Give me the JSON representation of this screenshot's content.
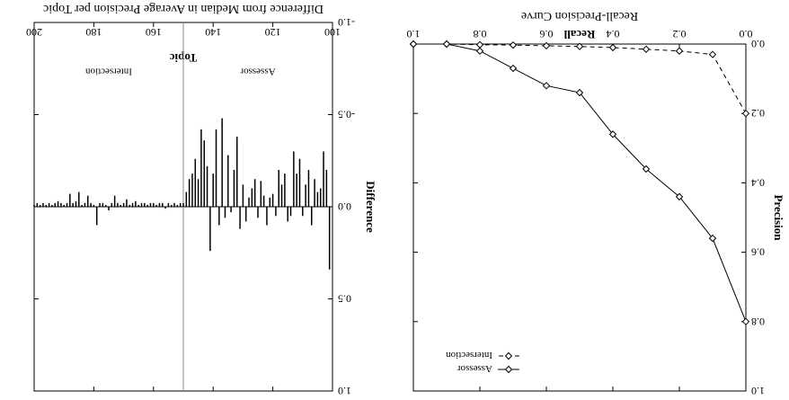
{
  "chart_data": [
    {
      "type": "line",
      "title": "Recall-Precision Curve",
      "xlabel": "Recall",
      "ylabel": "Precision",
      "xlim": [
        0.0,
        1.0
      ],
      "ylim": [
        0.0,
        1.0
      ],
      "xticks": [
        "0.0",
        "0.2",
        "0.4",
        "0.6",
        "0.8",
        "1.0"
      ],
      "yticks": [
        "0.0",
        "0.2",
        "0.4",
        "0.6",
        "0.8",
        "1.0"
      ],
      "grid": false,
      "legend_position": "top-right",
      "series": [
        {
          "name": "Assessor",
          "style": "solid",
          "x": [
            0.0,
            0.1,
            0.2,
            0.3,
            0.4,
            0.5,
            0.6,
            0.7,
            0.8,
            0.9,
            1.0
          ],
          "y": [
            0.8,
            0.56,
            0.44,
            0.36,
            0.26,
            0.14,
            0.12,
            0.07,
            0.02,
            0.0,
            0.0
          ]
        },
        {
          "name": "Intersection",
          "style": "dashed",
          "x": [
            0.0,
            0.1,
            0.2,
            0.3,
            0.4,
            0.5,
            0.6,
            0.7,
            0.8,
            0.9,
            1.0
          ],
          "y": [
            0.2,
            0.03,
            0.02,
            0.015,
            0.01,
            0.007,
            0.005,
            0.003,
            0.002,
            0.0,
            0.0
          ]
        }
      ]
    },
    {
      "type": "bar",
      "title": "Difference from Median in Average Precision per Topic",
      "xlabel": "Topic",
      "ylabel": "Difference",
      "xlim": [
        100,
        200
      ],
      "ylim": [
        -1.0,
        1.0
      ],
      "xticks": [
        "100",
        "120",
        "140",
        "160",
        "180",
        "200"
      ],
      "yticks": [
        "-1.0",
        "-0.5",
        "0.0",
        "0.5",
        "1.0"
      ],
      "region_labels": [
        "Assessor",
        "Intersection"
      ],
      "divider_topic": 150,
      "x": [
        101,
        102,
        103,
        104,
        105,
        106,
        107,
        108,
        109,
        110,
        111,
        112,
        113,
        114,
        115,
        116,
        117,
        118,
        119,
        120,
        121,
        122,
        123,
        124,
        125,
        126,
        127,
        128,
        129,
        130,
        131,
        132,
        133,
        134,
        135,
        136,
        137,
        138,
        139,
        140,
        141,
        142,
        143,
        144,
        145,
        146,
        147,
        148,
        149,
        150,
        151,
        152,
        153,
        154,
        155,
        156,
        157,
        158,
        159,
        160,
        161,
        162,
        163,
        164,
        165,
        166,
        167,
        168,
        169,
        170,
        171,
        172,
        173,
        174,
        175,
        176,
        177,
        178,
        179,
        180,
        181,
        182,
        183,
        184,
        185,
        186,
        187,
        188,
        189,
        190,
        191,
        192,
        193,
        194,
        195,
        196,
        197,
        198,
        199,
        200
      ],
      "values": [
        0.34,
        -0.2,
        -0.3,
        -0.1,
        -0.08,
        -0.15,
        0.1,
        -0.2,
        -0.12,
        0.05,
        -0.26,
        -0.18,
        -0.3,
        0.05,
        0.08,
        -0.18,
        -0.12,
        -0.2,
        0.05,
        -0.07,
        -0.05,
        0.1,
        -0.06,
        -0.14,
        0.06,
        -0.15,
        -0.1,
        -0.05,
        0.08,
        -0.12,
        0.12,
        -0.38,
        -0.2,
        0.03,
        -0.28,
        0.06,
        -0.48,
        0.1,
        -0.42,
        -0.18,
        0.24,
        -0.22,
        -0.36,
        -0.42,
        -0.15,
        -0.26,
        -0.18,
        -0.15,
        -0.08,
        -0.02,
        -0.02,
        -0.01,
        -0.02,
        -0.01,
        -0.02,
        0.01,
        -0.02,
        -0.02,
        -0.01,
        -0.02,
        -0.02,
        -0.01,
        -0.02,
        -0.02,
        -0.01,
        -0.03,
        -0.02,
        -0.01,
        -0.04,
        -0.02,
        -0.01,
        -0.02,
        -0.06,
        -0.02,
        0.02,
        -0.01,
        -0.02,
        -0.02,
        0.1,
        -0.01,
        -0.02,
        -0.06,
        -0.02,
        -0.01,
        -0.08,
        -0.03,
        -0.02,
        -0.07,
        -0.02,
        -0.01,
        -0.02,
        -0.03,
        -0.02,
        -0.01,
        -0.02,
        -0.01,
        -0.02,
        -0.01,
        -0.02,
        -0.01
      ]
    }
  ]
}
